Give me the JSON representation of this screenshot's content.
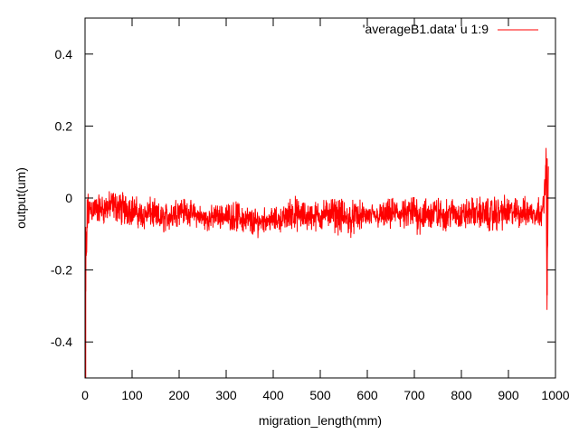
{
  "chart_data": {
    "type": "line",
    "title": "",
    "xlabel": "migration_length(mm)",
    "ylabel": "output(um)",
    "xlim": [
      0,
      1000
    ],
    "ylim": [
      -0.5,
      0.5
    ],
    "xticks": [
      0,
      100,
      200,
      300,
      400,
      500,
      600,
      700,
      800,
      900,
      1000
    ],
    "xtick_labels": [
      "0",
      "100",
      "200",
      "300",
      "400",
      "500",
      "600",
      "700",
      "800",
      "900",
      "1000"
    ],
    "yticks": [
      -0.4,
      -0.2,
      0,
      0.2,
      0.4
    ],
    "ytick_labels": [
      "-0.4",
      "-0.2",
      "0",
      "0.2",
      "0.4"
    ],
    "grid": false,
    "legend_position": "top-right",
    "series": [
      {
        "name": "'averageB1.data' u 1:9",
        "color": "#ff0000",
        "x": [
          0,
          2,
          5,
          10,
          20,
          40,
          60,
          80,
          100,
          120,
          140,
          160,
          180,
          200,
          220,
          240,
          260,
          280,
          300,
          320,
          340,
          360,
          380,
          400,
          420,
          440,
          460,
          480,
          500,
          520,
          540,
          560,
          580,
          600,
          620,
          640,
          660,
          680,
          700,
          720,
          740,
          760,
          780,
          800,
          820,
          840,
          860,
          880,
          900,
          920,
          940,
          960,
          975,
          980,
          982,
          985
        ],
        "y": [
          -0.5,
          -0.2,
          -0.05,
          -0.03,
          -0.03,
          -0.03,
          -0.02,
          -0.03,
          -0.03,
          -0.05,
          -0.04,
          -0.06,
          -0.05,
          -0.03,
          -0.04,
          -0.05,
          -0.06,
          -0.05,
          -0.05,
          -0.05,
          -0.06,
          -0.07,
          -0.06,
          -0.06,
          -0.06,
          -0.04,
          -0.05,
          -0.05,
          -0.05,
          -0.04,
          -0.05,
          -0.06,
          -0.05,
          -0.05,
          -0.05,
          -0.05,
          -0.04,
          -0.05,
          -0.04,
          -0.05,
          -0.04,
          -0.05,
          -0.04,
          -0.05,
          -0.04,
          -0.04,
          -0.05,
          -0.04,
          -0.04,
          -0.04,
          -0.04,
          -0.04,
          -0.03,
          0.11,
          -0.27,
          0.05
        ],
        "band": [
          0.5,
          0.2,
          0.08,
          0.05,
          0.05,
          0.05,
          0.05,
          0.06,
          0.05,
          0.05,
          0.05,
          0.05,
          0.05,
          0.05,
          0.04,
          0.04,
          0.04,
          0.04,
          0.04,
          0.05,
          0.05,
          0.05,
          0.04,
          0.04,
          0.04,
          0.06,
          0.05,
          0.05,
          0.05,
          0.05,
          0.06,
          0.06,
          0.05,
          0.04,
          0.04,
          0.05,
          0.05,
          0.05,
          0.07,
          0.06,
          0.06,
          0.05,
          0.05,
          0.05,
          0.05,
          0.05,
          0.06,
          0.06,
          0.05,
          0.05,
          0.05,
          0.05,
          0.05,
          0.05,
          0.05,
          0.05
        ]
      }
    ]
  }
}
